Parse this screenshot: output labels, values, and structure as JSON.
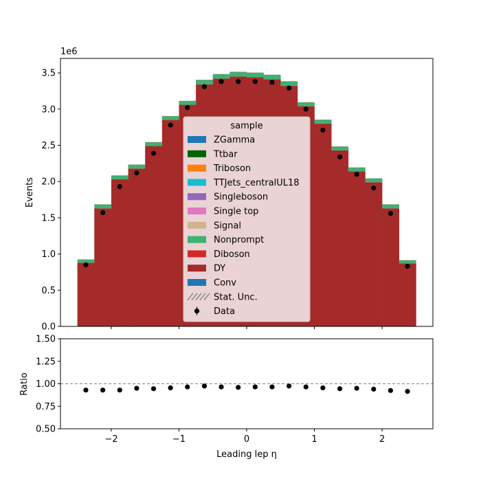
{
  "chart_data": [
    {
      "type": "bar",
      "subtype": "stacked-histogram",
      "title": "",
      "xlabel": "",
      "ylabel": "Events",
      "y_offset_label": "1e6",
      "xlim": [
        -2.75,
        2.75
      ],
      "ylim": [
        0,
        3.7
      ],
      "y_scale_factor": 1000000,
      "yticks": [
        0.0,
        0.5,
        1.0,
        1.5,
        2.0,
        2.5,
        3.0,
        3.5
      ],
      "ytick_labels": [
        "0.0",
        "0.5",
        "1.0",
        "1.5",
        "2.0",
        "2.5",
        "3.0",
        "3.5"
      ],
      "grid": false,
      "legend_title": "sample",
      "legend_location": "center",
      "bin_edges": [
        -2.5,
        -2.25,
        -2.0,
        -1.75,
        -1.5,
        -1.25,
        -1.0,
        -0.75,
        -0.5,
        -0.25,
        0.0,
        0.25,
        0.5,
        0.75,
        1.0,
        1.25,
        1.5,
        1.75,
        2.0,
        2.25,
        2.5
      ],
      "series": [
        {
          "name": "ZGamma",
          "color": "#1f77b4",
          "values": [
            0,
            0,
            0,
            0,
            0,
            0,
            0,
            0,
            0,
            0,
            0,
            0,
            0,
            0,
            0,
            0,
            0,
            0,
            0,
            0
          ]
        },
        {
          "name": "Ttbar",
          "color": "#006400",
          "values": [
            0,
            0,
            0,
            0,
            0,
            0,
            0,
            0,
            0,
            0,
            0,
            0,
            0,
            0,
            0,
            0,
            0,
            0,
            0,
            0
          ]
        },
        {
          "name": "Triboson",
          "color": "#ff7f0e",
          "values": [
            0,
            0,
            0,
            0,
            0,
            0,
            0,
            0,
            0,
            0,
            0,
            0,
            0,
            0,
            0,
            0,
            0,
            0,
            0,
            0
          ]
        },
        {
          "name": "TTJets_centralUL18",
          "color": "#17becf",
          "values": [
            0,
            0,
            0,
            0,
            0,
            0,
            0,
            0,
            0,
            0,
            0,
            0,
            0,
            0,
            0,
            0,
            0,
            0,
            0,
            0
          ]
        },
        {
          "name": "Singleboson",
          "color": "#9467bd",
          "values": [
            0,
            0,
            0,
            0,
            0,
            0,
            0,
            0,
            0,
            0,
            0,
            0,
            0,
            0,
            0,
            0,
            0,
            0,
            0,
            0
          ]
        },
        {
          "name": "Single top",
          "color": "#e377c2",
          "values": [
            0,
            0,
            0,
            0,
            0,
            0,
            0,
            0,
            0,
            0,
            0,
            0,
            0,
            0,
            0,
            0,
            0,
            0,
            0,
            0
          ]
        },
        {
          "name": "Signal",
          "color": "#d2b48c",
          "values": [
            0,
            0,
            0,
            0,
            0,
            0,
            0,
            0,
            0,
            0,
            0,
            0,
            0,
            0,
            0,
            0,
            0,
            0,
            0,
            0
          ]
        },
        {
          "name": "Nonprompt",
          "color": "#3cb371",
          "values": [
            0.04,
            0.05,
            0.05,
            0.05,
            0.05,
            0.05,
            0.05,
            0.06,
            0.06,
            0.06,
            0.06,
            0.06,
            0.06,
            0.05,
            0.05,
            0.05,
            0.05,
            0.05,
            0.05,
            0.04
          ]
        },
        {
          "name": "Diboson",
          "color": "#d62728",
          "values": [
            0,
            0,
            0,
            0,
            0,
            0,
            0,
            0,
            0,
            0,
            0,
            0,
            0,
            0,
            0,
            0,
            0,
            0,
            0,
            0
          ]
        },
        {
          "name": "DY",
          "color": "#a52a2a",
          "values": [
            0.88,
            1.63,
            2.03,
            2.18,
            2.49,
            2.85,
            3.06,
            3.34,
            3.42,
            3.45,
            3.44,
            3.41,
            3.32,
            3.04,
            2.8,
            2.43,
            2.14,
            1.99,
            1.63,
            0.87
          ]
        },
        {
          "name": "Conv",
          "color": "#1f77b4",
          "values": [
            0,
            0,
            0,
            0,
            0,
            0,
            0,
            0,
            0,
            0,
            0,
            0,
            0,
            0,
            0,
            0,
            0,
            0,
            0,
            0
          ]
        }
      ],
      "uncertainty": {
        "name": "Stat. Unc."
      },
      "data_series": {
        "name": "Data",
        "color": "#000000",
        "x": [
          -2.375,
          -2.125,
          -1.875,
          -1.625,
          -1.375,
          -1.125,
          -0.875,
          -0.625,
          -0.375,
          -0.125,
          0.125,
          0.375,
          0.625,
          0.875,
          1.125,
          1.375,
          1.625,
          1.875,
          2.125,
          2.375
        ],
        "y": [
          0.85,
          1.57,
          1.93,
          2.12,
          2.39,
          2.78,
          3.02,
          3.31,
          3.38,
          3.38,
          3.38,
          3.37,
          3.29,
          3.0,
          2.71,
          2.34,
          2.1,
          1.91,
          1.56,
          0.83
        ]
      }
    },
    {
      "type": "scatter",
      "title": "",
      "xlabel": "Leading lep η",
      "ylabel": "Ratio",
      "xlim": [
        -2.75,
        2.75
      ],
      "ylim": [
        0.5,
        1.5
      ],
      "xticks": [
        -2,
        -1,
        0,
        1,
        2
      ],
      "xtick_labels": [
        "−2",
        "−1",
        "0",
        "1",
        "2"
      ],
      "yticks": [
        0.5,
        0.75,
        1.0,
        1.25,
        1.5
      ],
      "ytick_labels": [
        "0.50",
        "0.75",
        "1.00",
        "1.25",
        "1.50"
      ],
      "reference_line": 1.0,
      "grid": false,
      "x": [
        -2.375,
        -2.125,
        -1.875,
        -1.625,
        -1.375,
        -1.125,
        -0.875,
        -0.625,
        -0.375,
        -0.125,
        0.125,
        0.375,
        0.625,
        0.875,
        1.125,
        1.375,
        1.625,
        1.875,
        2.125,
        2.375
      ],
      "y": [
        0.93,
        0.93,
        0.93,
        0.95,
        0.945,
        0.955,
        0.965,
        0.975,
        0.965,
        0.96,
        0.965,
        0.965,
        0.975,
        0.965,
        0.955,
        0.945,
        0.95,
        0.94,
        0.925,
        0.915
      ]
    }
  ]
}
